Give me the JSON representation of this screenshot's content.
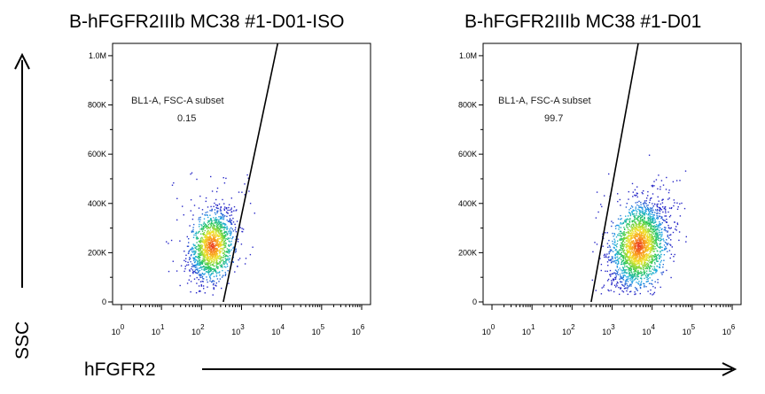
{
  "axes": {
    "y_label": "SSC",
    "x_label": "hFGFR2"
  },
  "chart_data": [
    {
      "type": "scatter",
      "title": "B-hFGFR2IIIb  MC38 #1-D01-ISO",
      "x_scale": "log",
      "xlim": [
        1,
        1000000
      ],
      "ylim": [
        0,
        1050000
      ],
      "y_ticks": [
        {
          "value": 0,
          "label": "0"
        },
        {
          "value": 200000,
          "label": "200K"
        },
        {
          "value": 400000,
          "label": "400K"
        },
        {
          "value": 600000,
          "label": "600K"
        },
        {
          "value": 800000,
          "label": "800K"
        },
        {
          "value": 1000000,
          "label": "1.0M"
        }
      ],
      "x_ticks": [
        {
          "value": 1,
          "base": "10",
          "exp": "0"
        },
        {
          "value": 10,
          "base": "10",
          "exp": "1"
        },
        {
          "value": 100,
          "base": "10",
          "exp": "2"
        },
        {
          "value": 1000,
          "base": "10",
          "exp": "3"
        },
        {
          "value": 10000,
          "base": "10",
          "exp": "4"
        },
        {
          "value": 100000,
          "base": "10",
          "exp": "5"
        },
        {
          "value": 1000000,
          "base": "10",
          "exp": "6"
        }
      ],
      "gate": {
        "name": "BL1-A, FSC-A subset",
        "value": "0.15",
        "line": [
          [
            350,
            0
          ],
          [
            8000,
            1050000
          ]
        ]
      },
      "population": {
        "center_x": 180,
        "center_y": 230000,
        "spread_log_x": 0.28,
        "spread_y": 70000,
        "count": 1400
      }
    },
    {
      "type": "scatter",
      "title": "B-hFGFR2IIIb  MC38 #1-D01",
      "x_scale": "log",
      "xlim": [
        1,
        1000000
      ],
      "ylim": [
        0,
        1050000
      ],
      "y_ticks": [
        {
          "value": 0,
          "label": "0"
        },
        {
          "value": 200000,
          "label": "200K"
        },
        {
          "value": 400000,
          "label": "400K"
        },
        {
          "value": 600000,
          "label": "600K"
        },
        {
          "value": 800000,
          "label": "800K"
        },
        {
          "value": 1000000,
          "label": "1.0M"
        }
      ],
      "x_ticks": [
        {
          "value": 1,
          "base": "10",
          "exp": "0"
        },
        {
          "value": 10,
          "base": "10",
          "exp": "1"
        },
        {
          "value": 100,
          "base": "10",
          "exp": "2"
        },
        {
          "value": 1000,
          "base": "10",
          "exp": "3"
        },
        {
          "value": 10000,
          "base": "10",
          "exp": "4"
        },
        {
          "value": 100000,
          "base": "10",
          "exp": "5"
        },
        {
          "value": 1000000,
          "base": "10",
          "exp": "6"
        }
      ],
      "gate": {
        "name": "BL1-A, FSC-A subset",
        "value": "99.7",
        "line": [
          [
            300,
            0
          ],
          [
            4500,
            1050000
          ]
        ]
      },
      "population": {
        "center_x": 4500,
        "center_y": 230000,
        "spread_log_x": 0.35,
        "spread_y": 85000,
        "count": 2200
      }
    }
  ]
}
